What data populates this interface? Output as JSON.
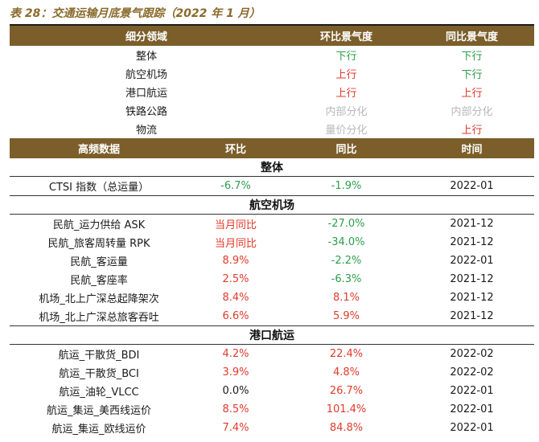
{
  "caption": "表 28：交通运输月底景气跟踪（2022 年 1 月）",
  "colors": {
    "header_bg": "#7b5e2a",
    "up_red": "#e03a2c",
    "down_green": "#2e9e4a",
    "neutral_gray": "#b8b8b8",
    "caption": "#8a6a2b"
  },
  "sentiment": {
    "headers": [
      "细分领域",
      "环比景气度",
      "同比景气度"
    ],
    "rows": [
      {
        "segment": "整体",
        "mom": "下行",
        "yoy": "下行"
      },
      {
        "segment": "航空机场",
        "mom": "上行",
        "yoy": "下行"
      },
      {
        "segment": "港口航运",
        "mom": "上行",
        "yoy": "上行"
      },
      {
        "segment": "铁路公路",
        "mom": "内部分化",
        "yoy": "内部分化"
      },
      {
        "segment": "物流",
        "mom": "量价分化",
        "yoy": "上行"
      }
    ]
  },
  "hf": {
    "headers": [
      "高频数据",
      "环比",
      "同比",
      "时间"
    ],
    "sections": [
      {
        "title": "整体",
        "rows": [
          {
            "name": "CTSI 指数（总运量）",
            "mom": "-6.7%",
            "yoy": "-1.9%",
            "date": "2022-01"
          }
        ]
      },
      {
        "title": "航空机场",
        "rows": [
          {
            "name": "民航_运力供给 ASK",
            "mom": "当月同比",
            "yoy": "-27.0%",
            "date": "2021-12"
          },
          {
            "name": "民航_旅客周转量 RPK",
            "mom": "当月同比",
            "yoy": "-34.0%",
            "date": "2021-12"
          },
          {
            "name": "民航_客运量",
            "mom": "8.9%",
            "yoy": "-2.2%",
            "date": "2022-01"
          },
          {
            "name": "民航_客座率",
            "mom": "2.5%",
            "yoy": "-6.3%",
            "date": "2021-12"
          },
          {
            "name": "机场_北上广深总起降架次",
            "mom": "8.4%",
            "yoy": "8.1%",
            "date": "2021-12"
          },
          {
            "name": "机场_北上广深总旅客吞吐",
            "mom": "6.6%",
            "yoy": "5.9%",
            "date": "2021-12"
          }
        ]
      },
      {
        "title": "港口航运",
        "rows": [
          {
            "name": "航运_干散货_BDI",
            "mom": "4.2%",
            "yoy": "22.4%",
            "date": "2022-02"
          },
          {
            "name": "航运_干散货_BCI",
            "mom": "3.9%",
            "yoy": "4.8%",
            "date": "2022-02"
          },
          {
            "name": "航运_油轮_VLCC",
            "mom": "0.0%",
            "yoy": "26.7%",
            "date": "2022-01"
          },
          {
            "name": "航运_集运_美西线运价",
            "mom": "8.5%",
            "yoy": "101.4%",
            "date": "2022-01"
          },
          {
            "name": "航运_集运_欧线运价",
            "mom": "7.4%",
            "yoy": "84.8%",
            "date": "2022-01"
          }
        ]
      }
    ]
  }
}
